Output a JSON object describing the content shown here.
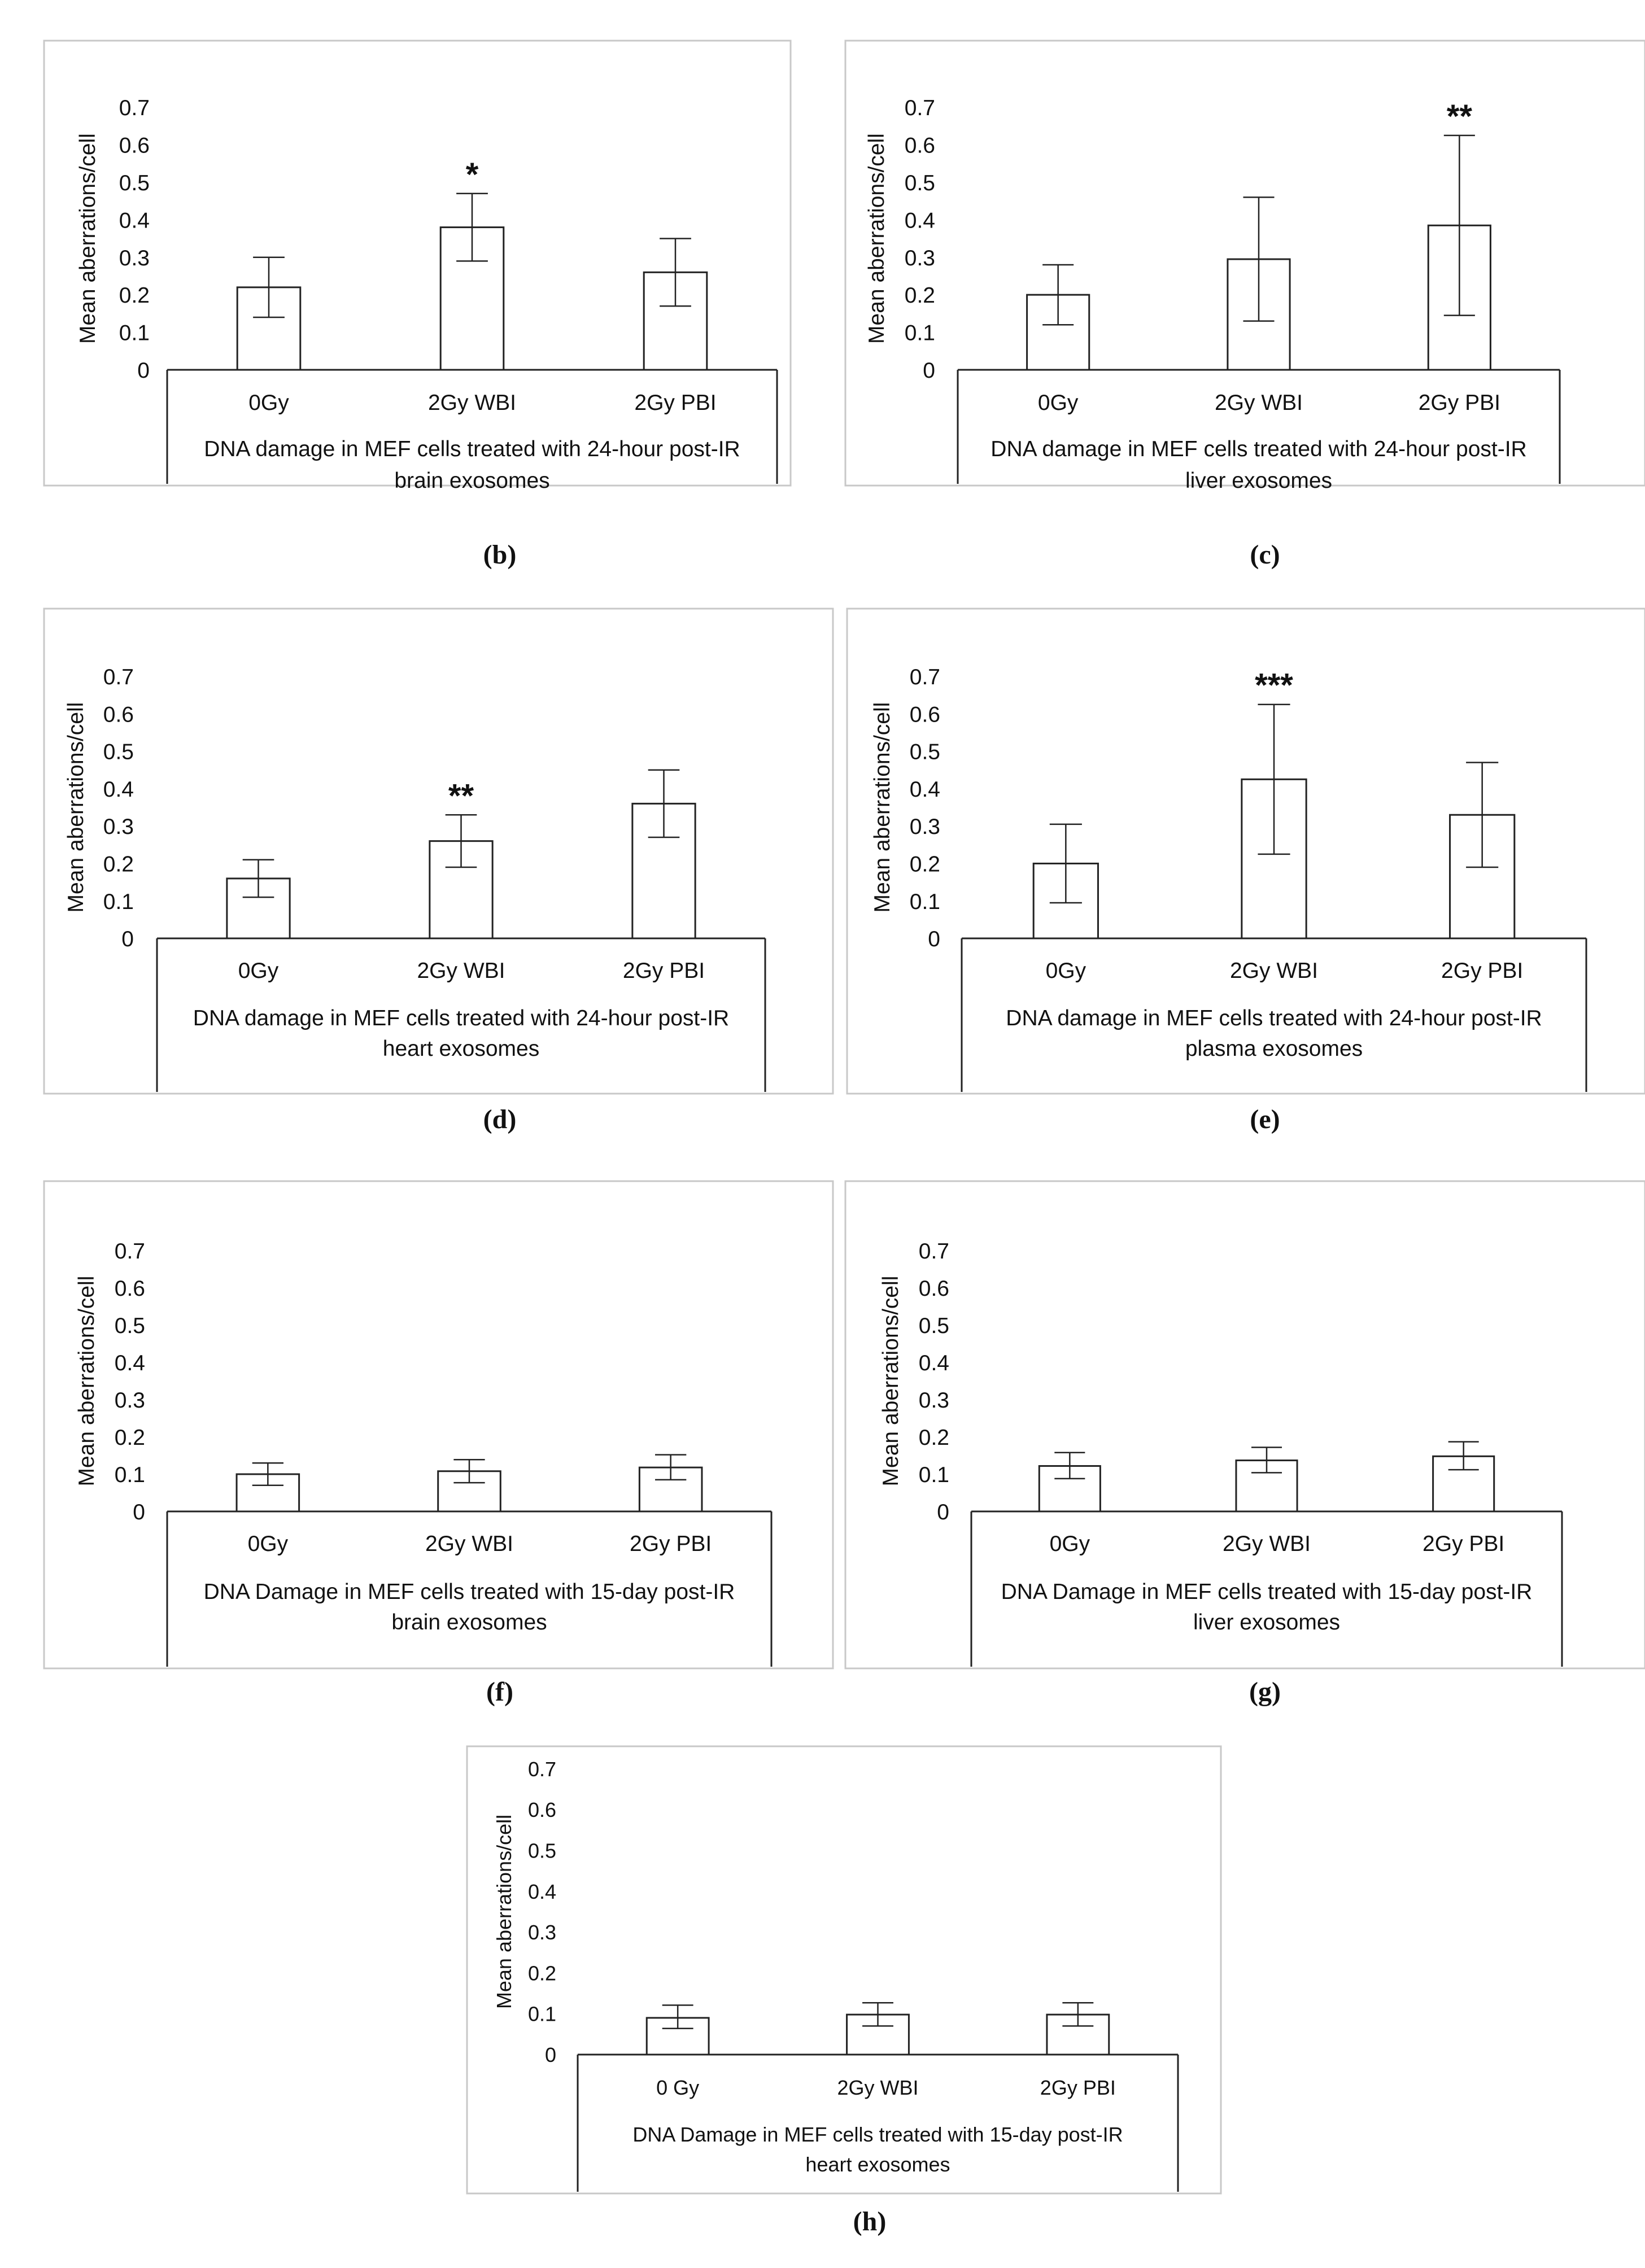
{
  "chart_data": [
    {
      "panel": "b",
      "type": "bar",
      "ylabel": "Mean aberrations/cell",
      "ylim": [
        0,
        0.7
      ],
      "yticks": [
        "0",
        "0.1",
        "0.2",
        "0.3",
        "0.4",
        "0.5",
        "0.6",
        "0.7"
      ],
      "categories": [
        "0Gy",
        "2Gy WBI",
        "2Gy PBI"
      ],
      "values": [
        0.22,
        0.38,
        0.26
      ],
      "error_low": [
        0.14,
        0.29,
        0.17
      ],
      "error_high": [
        0.3,
        0.47,
        0.35
      ],
      "significance": [
        "",
        "*",
        ""
      ],
      "xlabel_lines": [
        "DNA damage in MEF cells treated with 24-hour post-IR",
        "brain exosomes"
      ],
      "caption": "(b)"
    },
    {
      "panel": "c",
      "type": "bar",
      "ylabel": "Mean aberrations/cell",
      "ylim": [
        0,
        0.7
      ],
      "yticks": [
        "0",
        "0.1",
        "0.2",
        "0.3",
        "0.4",
        "0.5",
        "0.6",
        "0.7"
      ],
      "categories": [
        "0Gy",
        "2Gy WBI",
        "2Gy PBI"
      ],
      "values": [
        0.2,
        0.295,
        0.385
      ],
      "error_low": [
        0.12,
        0.13,
        0.145
      ],
      "error_high": [
        0.28,
        0.46,
        0.625
      ],
      "significance": [
        "",
        "",
        "**"
      ],
      "xlabel_lines": [
        "DNA damage in MEF cells treated with 24-hour post-IR",
        "liver exosomes"
      ],
      "caption": "(c)"
    },
    {
      "panel": "d",
      "type": "bar",
      "ylabel": "Mean aberrations/cell",
      "ylim": [
        0,
        0.7
      ],
      "yticks": [
        "0",
        "0.1",
        "0.2",
        "0.3",
        "0.4",
        "0.5",
        "0.6",
        "0.7"
      ],
      "categories": [
        "0Gy",
        "2Gy WBI",
        "2Gy PBI"
      ],
      "values": [
        0.16,
        0.26,
        0.36
      ],
      "error_low": [
        0.11,
        0.19,
        0.27
      ],
      "error_high": [
        0.21,
        0.33,
        0.45
      ],
      "significance": [
        "",
        "**",
        ""
      ],
      "xlabel_lines": [
        "DNA damage in MEF cells treated with 24-hour post-IR",
        "heart exosomes"
      ],
      "caption": "(d)"
    },
    {
      "panel": "e",
      "type": "bar",
      "ylabel": "Mean aberrations/cell",
      "ylim": [
        0,
        0.7
      ],
      "yticks": [
        "0",
        "0.1",
        "0.2",
        "0.3",
        "0.4",
        "0.5",
        "0.6",
        "0.7"
      ],
      "categories": [
        "0Gy",
        "2Gy WBI",
        "2Gy PBI"
      ],
      "values": [
        0.2,
        0.425,
        0.33
      ],
      "error_low": [
        0.095,
        0.225,
        0.19
      ],
      "error_high": [
        0.305,
        0.625,
        0.47
      ],
      "significance": [
        "",
        "***",
        ""
      ],
      "xlabel_lines": [
        "DNA damage in MEF cells treated with 24-hour post-IR",
        "plasma exosomes"
      ],
      "caption": "(e)"
    },
    {
      "panel": "f",
      "type": "bar",
      "ylabel": "Mean aberrations/cell",
      "ylim": [
        0,
        0.7
      ],
      "yticks": [
        "0",
        "0.1",
        "0.2",
        "0.3",
        "0.4",
        "0.5",
        "0.6",
        "0.7"
      ],
      "categories": [
        "0Gy",
        "2Gy WBI",
        "2Gy PBI"
      ],
      "values": [
        0.1,
        0.108,
        0.118
      ],
      "error_low": [
        0.07,
        0.077,
        0.085
      ],
      "error_high": [
        0.13,
        0.139,
        0.152
      ],
      "significance": [
        "",
        "",
        ""
      ],
      "xlabel_lines": [
        "DNA Damage in MEF cells treated with 15-day post-IR",
        "brain exosomes"
      ],
      "caption": "(f)"
    },
    {
      "panel": "g",
      "type": "bar",
      "ylabel": "Mean aberrations/cell",
      "ylim": [
        0,
        0.7
      ],
      "yticks": [
        "0",
        "0.1",
        "0.2",
        "0.3",
        "0.4",
        "0.5",
        "0.6",
        "0.7"
      ],
      "categories": [
        "0Gy",
        "2Gy WBI",
        "2Gy PBI"
      ],
      "values": [
        0.122,
        0.137,
        0.148
      ],
      "error_low": [
        0.088,
        0.104,
        0.112
      ],
      "error_high": [
        0.158,
        0.172,
        0.187
      ],
      "significance": [
        "",
        "",
        ""
      ],
      "xlabel_lines": [
        "DNA Damage in MEF cells treated with 15-day post-IR",
        "liver exosomes"
      ],
      "caption": "(g)"
    },
    {
      "panel": "h",
      "type": "bar",
      "ylabel": "Mean aberrations/cell",
      "ylim": [
        0,
        0.7
      ],
      "yticks": [
        "0",
        "0.1",
        "0.2",
        "0.3",
        "0.4",
        "0.5",
        "0.6",
        "0.7"
      ],
      "categories": [
        "0 Gy",
        "2Gy WBI",
        "2Gy PBI"
      ],
      "values": [
        0.09,
        0.098,
        0.098
      ],
      "error_low": [
        0.064,
        0.07,
        0.07
      ],
      "error_high": [
        0.121,
        0.127,
        0.127
      ],
      "significance": [
        "",
        "",
        ""
      ],
      "xlabel_lines": [
        "DNA Damage in MEF cells treated with 15-day post-IR",
        "heart exosomes"
      ],
      "caption": "(h)"
    }
  ]
}
